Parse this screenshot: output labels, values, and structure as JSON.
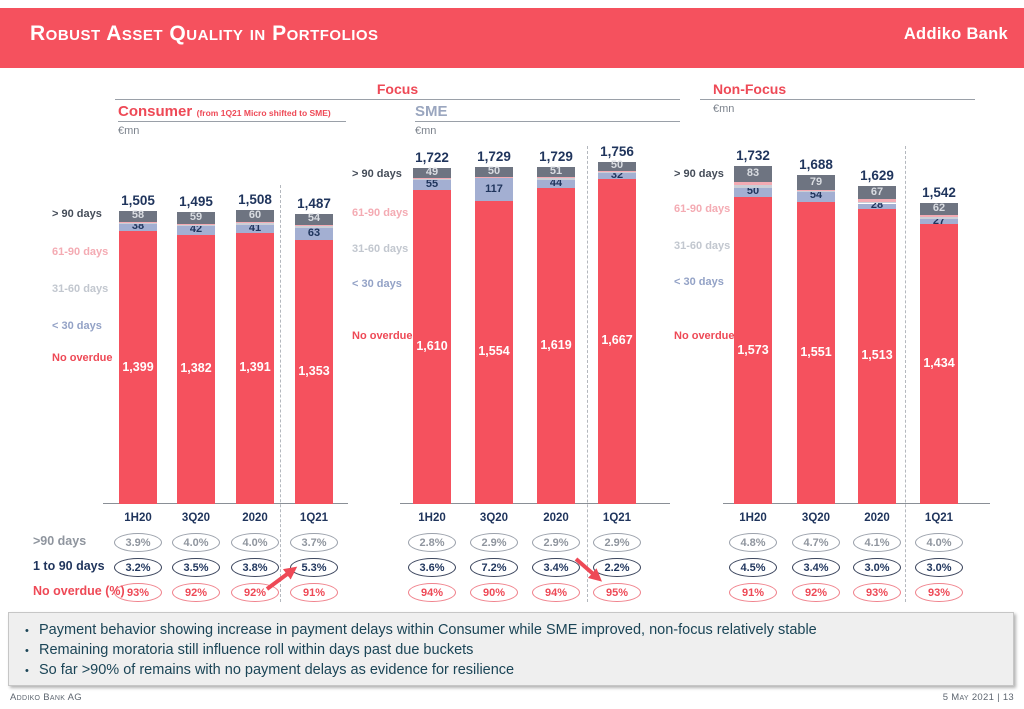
{
  "header": {
    "title": "Robust Asset Quality in Portfolios",
    "logo_text": "Addiko Bank"
  },
  "section_headers": {
    "focus": "Focus",
    "non_focus": "Non-Focus"
  },
  "legend_items": [
    {
      "label": "> 90 days",
      "color": "#454D59"
    },
    {
      "label": "61-90 days",
      "color": "#F4ABB3"
    },
    {
      "label": "31-60 days",
      "color": "#C2C7CF"
    },
    {
      "label": "< 30 days",
      "color": "#93A2C6"
    },
    {
      "label": "No overdue",
      "color": "#EE4956"
    }
  ],
  "colors": {
    "accent_red": "#F5515E",
    "bar_no_overdue": "#F5515E",
    "bar_gt90": "#6E7481",
    "bar_lt30": "#A3AFD2",
    "bar_61_90": "#F3ABB3",
    "bar_31_60": "#CBCFD7",
    "navy_text": "#1F345C"
  },
  "chart_data": [
    {
      "type": "bar",
      "stacked": true,
      "title": "Consumer",
      "note": "(from 1Q21 Micro shifted to SME)",
      "unit": "€mn",
      "categories": [
        "1H20",
        "3Q20",
        "2020",
        "1Q21"
      ],
      "totals": [
        1505,
        1495,
        1508,
        1487
      ],
      "series": [
        {
          "name": "> 90 days",
          "values": [
            58,
            59,
            60,
            54
          ]
        },
        {
          "name": "< 30 days",
          "values": [
            38,
            42,
            41,
            63
          ]
        },
        {
          "name": "No overdue",
          "values": [
            1399,
            1382,
            1391,
            1353
          ]
        }
      ],
      "table_rows": [
        {
          "label": ">90 days",
          "values": [
            "3.9%",
            "4.0%",
            "4.0%",
            "3.7%"
          ]
        },
        {
          "label": "1 to 90 days",
          "values": [
            "3.2%",
            "3.5%",
            "3.8%",
            "5.3%"
          ]
        },
        {
          "label": "No overdue (%)",
          "values": [
            "93%",
            "92%",
            "92%",
            "91%"
          ]
        }
      ]
    },
    {
      "type": "bar",
      "stacked": true,
      "title": "SME",
      "unit": "€mn",
      "categories": [
        "1H20",
        "3Q20",
        "2020",
        "1Q21"
      ],
      "totals": [
        1722,
        1729,
        1729,
        1756
      ],
      "series": [
        {
          "name": "> 90 days",
          "values": [
            49,
            50,
            51,
            50
          ]
        },
        {
          "name": "< 30 days",
          "values": [
            55,
            117,
            44,
            32
          ]
        },
        {
          "name": "No overdue",
          "values": [
            1610,
            1554,
            1619,
            1667
          ]
        }
      ],
      "table_rows": [
        {
          "label": ">90 days",
          "values": [
            "2.8%",
            "2.9%",
            "2.9%",
            "2.9%"
          ]
        },
        {
          "label": "1 to 90 days",
          "values": [
            "3.6%",
            "7.2%",
            "3.4%",
            "2.2%"
          ]
        },
        {
          "label": "No overdue (%)",
          "values": [
            "94%",
            "90%",
            "94%",
            "95%"
          ]
        }
      ]
    },
    {
      "type": "bar",
      "stacked": true,
      "title": "Non-Focus",
      "unit": "€mn",
      "categories": [
        "1H20",
        "3Q20",
        "2020",
        "1Q21"
      ],
      "totals": [
        1732,
        1688,
        1629,
        1542
      ],
      "series": [
        {
          "name": "> 90 days",
          "values": [
            83,
            79,
            67,
            62
          ]
        },
        {
          "name": "< 30 days",
          "values": [
            50,
            54,
            28,
            27
          ]
        },
        {
          "name": "No overdue",
          "values": [
            1573,
            1551,
            1513,
            1434
          ]
        }
      ],
      "table_rows": [
        {
          "label": ">90 days",
          "values": [
            "4.8%",
            "4.7%",
            "4.1%",
            "4.0%"
          ]
        },
        {
          "label": "1 to 90 days",
          "values": [
            "4.5%",
            "3.4%",
            "3.0%",
            "3.0%"
          ]
        },
        {
          "label": "No overdue (%)",
          "values": [
            "91%",
            "92%",
            "93%",
            "93%"
          ]
        }
      ]
    }
  ],
  "bullets": [
    "Payment behavior showing increase in payment delays within Consumer while SME improved, non-focus relatively stable",
    "Remaining moratoria still influence roll within days past due buckets",
    "So far >90% of remains with no payment delays as evidence for resilience"
  ],
  "footer": {
    "left": "Addiko Bank AG",
    "right": "5 May 2021 | 13"
  }
}
